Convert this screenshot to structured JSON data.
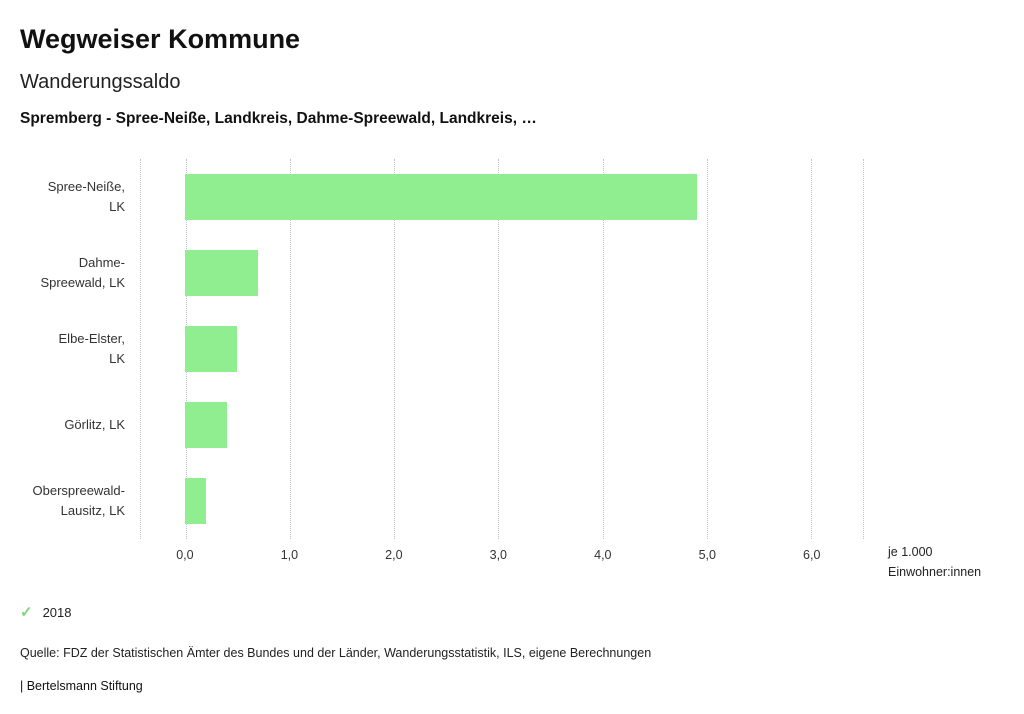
{
  "header": {
    "title": "Wegweiser Kommune",
    "subtitle": "Wanderungssaldo",
    "description": "Spremberg - Spree-Neiße, Landkreis, Dahme-Spreewald, Landkreis, …"
  },
  "chart_data": {
    "type": "bar",
    "orientation": "horizontal",
    "title": "Wanderungssaldo",
    "categories": [
      "Spree-Neiße, LK",
      "Dahme-Spreewald, LK",
      "Elbe-Elster, LK",
      "Görlitz, LK",
      "Oberspreewald-Lausitz, LK"
    ],
    "category_lines": [
      [
        "Spree-Neiße,",
        "LK"
      ],
      [
        "Dahme-",
        "Spreewald, LK"
      ],
      [
        "Elbe-Elster,",
        "LK"
      ],
      [
        "Görlitz, LK"
      ],
      [
        "Oberspreewald-",
        "Lausitz, LK"
      ]
    ],
    "series": [
      {
        "name": "2018",
        "values": [
          4.9,
          0.7,
          0.5,
          0.4,
          0.2
        ]
      }
    ],
    "values": [
      4.9,
      0.7,
      0.5,
      0.4,
      0.2
    ],
    "xlim": [
      -0.43,
      6.5
    ],
    "ticks": [
      {
        "value": 0,
        "label": "0,0"
      },
      {
        "value": 1,
        "label": "1,0"
      },
      {
        "value": 2,
        "label": "2,0"
      },
      {
        "value": 3,
        "label": "3,0"
      },
      {
        "value": 4,
        "label": "4,0"
      },
      {
        "value": 5,
        "label": "5,0"
      },
      {
        "value": 6,
        "label": "6,0"
      }
    ],
    "grid": "dotted-vertical",
    "legend_position": "bottom-left",
    "bar_color": "#90ee90",
    "xlabel_line1": "je 1.000",
    "xlabel_line2": "Einwohner:innen"
  },
  "legend": {
    "items": [
      {
        "label": "2018",
        "color": "#7fd37f",
        "icon": "check"
      }
    ]
  },
  "footer": {
    "source": "Quelle: FDZ der Statistischen Ämter des Bundes und der Länder, Wanderungsstatistik, ILS, eigene Berechnungen",
    "branding": "| Bertelsmann Stiftung"
  }
}
